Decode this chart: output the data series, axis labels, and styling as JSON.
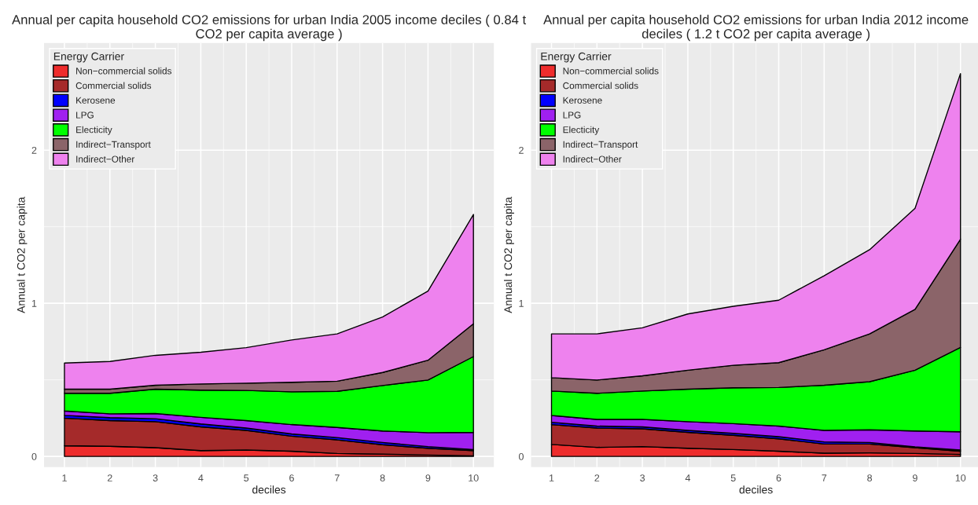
{
  "chart_data": [
    {
      "type": "area",
      "title": "Annual per capita household CO2 emissions for urban India 2005 income deciles ( 0.84 t CO2 per capita average )",
      "xlabel": "deciles",
      "ylabel": "Annual t CO2 per capita",
      "legend_title": "Energy Carrier",
      "legend": "top left",
      "stacked": true,
      "grid": true,
      "x": [
        1,
        2,
        3,
        4,
        5,
        6,
        7,
        8,
        9,
        10
      ],
      "xlim": [
        0.55,
        10.45
      ],
      "xticks": [
        1,
        2,
        3,
        4,
        5,
        6,
        7,
        8,
        9,
        10
      ],
      "ylim": [
        -0.07,
        2.7
      ],
      "yticks": [
        0,
        1,
        2
      ],
      "series": [
        {
          "name": "Non−commercial solids",
          "color": "#ee2c2c",
          "values": [
            0.07,
            0.066,
            0.057,
            0.038,
            0.042,
            0.034,
            0.019,
            0.015,
            0.009,
            0.004
          ]
        },
        {
          "name": "Commercial solids",
          "color": "#a52a2a",
          "values": [
            0.18,
            0.168,
            0.17,
            0.155,
            0.128,
            0.098,
            0.089,
            0.061,
            0.044,
            0.034
          ]
        },
        {
          "name": "Kerosene",
          "color": "#0000ff",
          "values": [
            0.018,
            0.019,
            0.019,
            0.019,
            0.015,
            0.015,
            0.015,
            0.015,
            0.011,
            0.007
          ]
        },
        {
          "name": "LPG",
          "color": "#a020f0",
          "values": [
            0.029,
            0.025,
            0.034,
            0.043,
            0.049,
            0.061,
            0.066,
            0.075,
            0.091,
            0.112
          ]
        },
        {
          "name": "Electicity",
          "color": "#00ff00",
          "values": [
            0.115,
            0.134,
            0.159,
            0.178,
            0.197,
            0.214,
            0.236,
            0.297,
            0.344,
            0.495
          ]
        },
        {
          "name": "Indirect−Transport",
          "color": "#8b6469",
          "values": [
            0.027,
            0.027,
            0.026,
            0.04,
            0.047,
            0.062,
            0.066,
            0.085,
            0.129,
            0.214
          ]
        },
        {
          "name": "Indirect−Other",
          "color": "#ee82ee",
          "values": [
            0.171,
            0.181,
            0.195,
            0.207,
            0.232,
            0.276,
            0.309,
            0.362,
            0.452,
            0.714
          ]
        }
      ]
    },
    {
      "type": "area",
      "title": "Annual per capita household CO2 emissions for urban India 2012 income deciles ( 1.2 t CO2 per capita average )",
      "xlabel": "deciles",
      "ylabel": "Annual t CO2 per capita",
      "legend_title": "Energy Carrier",
      "legend": "top left",
      "stacked": true,
      "grid": true,
      "x": [
        1,
        2,
        3,
        4,
        5,
        6,
        7,
        8,
        9,
        10
      ],
      "xlim": [
        0.55,
        10.45
      ],
      "xticks": [
        1,
        2,
        3,
        4,
        5,
        6,
        7,
        8,
        9,
        10
      ],
      "ylim": [
        -0.07,
        2.7
      ],
      "yticks": [
        0,
        1,
        2
      ],
      "series": [
        {
          "name": "Non−commercial solids",
          "color": "#ee2c2c",
          "values": [
            0.078,
            0.059,
            0.064,
            0.053,
            0.045,
            0.034,
            0.021,
            0.023,
            0.019,
            0.013
          ]
        },
        {
          "name": "Commercial solids",
          "color": "#a52a2a",
          "values": [
            0.13,
            0.126,
            0.116,
            0.104,
            0.093,
            0.081,
            0.06,
            0.058,
            0.038,
            0.021
          ]
        },
        {
          "name": "Kerosene",
          "color": "#0000ff",
          "values": [
            0.015,
            0.013,
            0.013,
            0.013,
            0.013,
            0.014,
            0.014,
            0.01,
            0.005,
            0.008
          ]
        },
        {
          "name": "LPG",
          "color": "#a020f0",
          "values": [
            0.044,
            0.044,
            0.049,
            0.057,
            0.063,
            0.069,
            0.075,
            0.083,
            0.104,
            0.119
          ]
        },
        {
          "name": "Electicity",
          "color": "#00ff00",
          "values": [
            0.16,
            0.17,
            0.185,
            0.212,
            0.234,
            0.252,
            0.295,
            0.314,
            0.397,
            0.55
          ]
        },
        {
          "name": "Indirect−Transport",
          "color": "#8b6469",
          "values": [
            0.087,
            0.087,
            0.099,
            0.124,
            0.147,
            0.162,
            0.231,
            0.312,
            0.397,
            0.707
          ]
        },
        {
          "name": "Indirect−Other",
          "color": "#ee82ee",
          "values": [
            0.286,
            0.301,
            0.314,
            0.367,
            0.385,
            0.408,
            0.484,
            0.55,
            0.66,
            1.082
          ]
        }
      ]
    }
  ]
}
